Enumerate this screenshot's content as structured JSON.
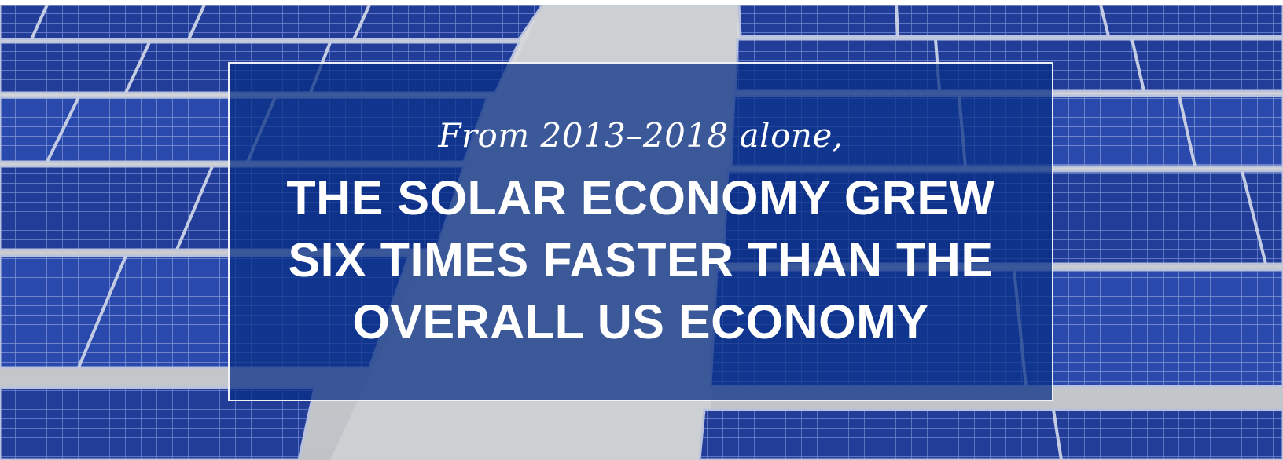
{
  "banner": {
    "intro": "From 2013–2018 alone,",
    "headline_lines": [
      "THE SOLAR ECONOMY GREW",
      "SIX TIMES FASTER THAN THE",
      "OVERALL US ECONOMY"
    ]
  },
  "colors": {
    "overlay": "#082e84",
    "panel": "#1f3ea0",
    "text": "#ffffff",
    "roof": "#c9ccd0"
  }
}
